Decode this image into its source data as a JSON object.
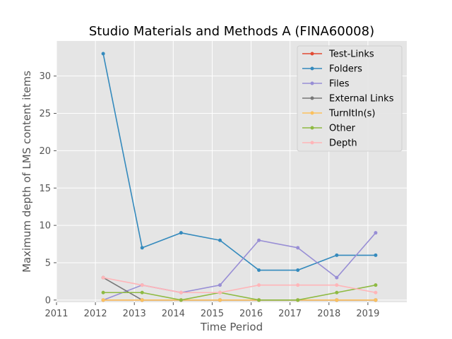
{
  "chart_data": {
    "type": "line",
    "title": "Studio Materials and Methods A (FINA60008)",
    "xlabel": "Time Period",
    "ylabel": "Maximum depth of LMS content items",
    "x_ticks": [
      "2011",
      "2012",
      "2013",
      "2014",
      "2015",
      "2016",
      "2017",
      "2018",
      "2019"
    ],
    "y_ticks": [
      "0",
      "5",
      "10",
      "15",
      "20",
      "25",
      "30"
    ],
    "xlim": [
      2011,
      2020
    ],
    "ylim": [
      -0.3,
      34.7
    ],
    "x": [
      2012.2,
      2013.2,
      2014.2,
      2015.2,
      2016.2,
      2017.2,
      2018.2,
      2019.2
    ],
    "grid": true,
    "legend_position": "top-right",
    "series": [
      {
        "name": "Test-Links",
        "color": "#E24A33",
        "values": [
          0,
          0,
          0,
          0,
          0,
          0,
          0,
          0
        ]
      },
      {
        "name": "Folders",
        "color": "#348ABD",
        "values": [
          33,
          7,
          9,
          8,
          4,
          4,
          6,
          6
        ]
      },
      {
        "name": "Files",
        "color": "#988ED5",
        "values": [
          0,
          2,
          1,
          2,
          8,
          7,
          3,
          9
        ]
      },
      {
        "name": "External Links",
        "color": "#777777",
        "values": [
          3,
          0,
          0,
          0,
          0,
          0,
          0,
          0
        ]
      },
      {
        "name": "TurnItIn(s)",
        "color": "#FBC15E",
        "values": [
          0,
          0,
          0,
          0,
          0,
          0,
          0,
          0
        ]
      },
      {
        "name": "Other",
        "color": "#8EBA42",
        "values": [
          1,
          1,
          0,
          1,
          0,
          0,
          1,
          2
        ]
      },
      {
        "name": "Depth",
        "color": "#FFB5B8",
        "values": [
          3,
          2,
          1,
          1,
          2,
          2,
          2,
          1
        ]
      }
    ]
  }
}
